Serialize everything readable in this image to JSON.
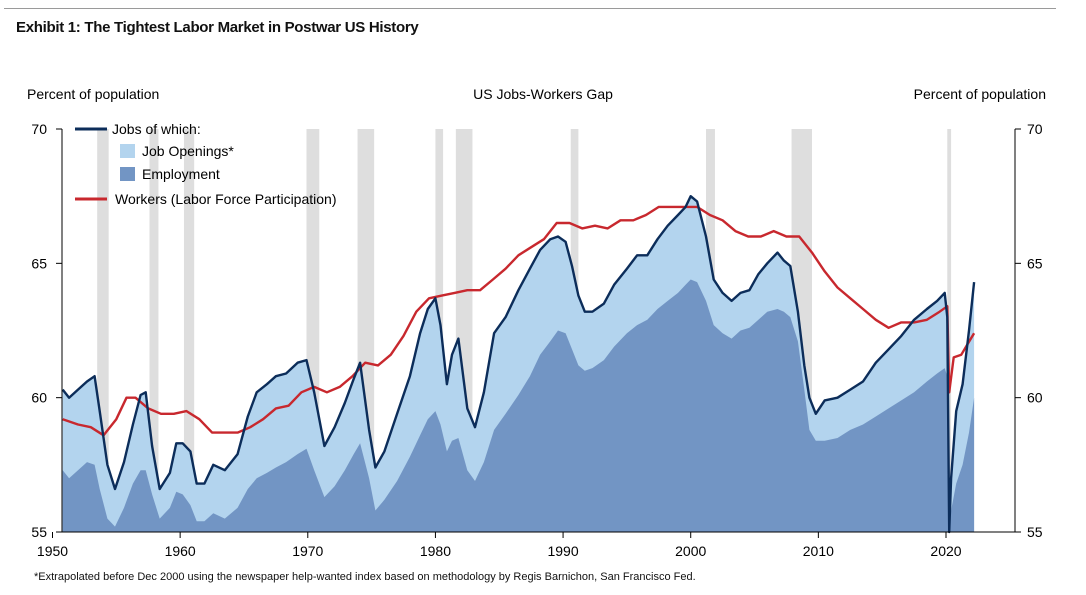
{
  "exhibit_title": "Exhibit 1: The Tightest Labor Market in Postwar US History",
  "footnote": "*Extrapolated before Dec 2000 using the newspaper help-wanted index based on methodology by Regis Barnichon, San Francisco Fed.",
  "colors": {
    "jobs_line": "#0c2d5a",
    "job_openings": "#b3d4ee",
    "employment": "#7295c4",
    "workers_line": "#c8282e",
    "recession": "#dedede",
    "axis": "#000000"
  },
  "chart_data": {
    "type": "area",
    "title": "US Jobs-Workers Gap",
    "ylabel_left": "Percent of population",
    "ylabel_right": "Percent of population",
    "xlabel": "",
    "xlim": [
      1950,
      2023
    ],
    "ylim": [
      55,
      70
    ],
    "x_ticks": [
      1950,
      1960,
      1970,
      1980,
      1990,
      2000,
      2010,
      2020
    ],
    "y_ticks": [
      55,
      60,
      65,
      70
    ],
    "grid": false,
    "legend": {
      "position": "top-left",
      "entries": [
        {
          "label": "Jobs of which:",
          "kind": "line",
          "series": "jobs"
        },
        {
          "label": "Job Openings*",
          "kind": "box",
          "series": "job_openings"
        },
        {
          "label": "Employment",
          "kind": "box",
          "series": "employment"
        },
        {
          "label": "Workers (Labor Force Participation)",
          "kind": "line",
          "series": "workers"
        }
      ]
    },
    "recessions": [
      [
        1953.5,
        1954.4
      ],
      [
        1957.6,
        1958.3
      ],
      [
        1960.3,
        1961.1
      ],
      [
        1969.9,
        1970.9
      ],
      [
        1973.9,
        1975.2
      ],
      [
        1980.0,
        1980.6
      ],
      [
        1981.6,
        1982.9
      ],
      [
        1990.6,
        1991.2
      ],
      [
        2001.2,
        2001.9
      ],
      [
        2007.9,
        2009.5
      ],
      [
        2020.1,
        2020.4
      ]
    ],
    "series": [
      {
        "name": "Jobs",
        "key": "jobs",
        "x": [
          1950.8,
          1951.3,
          1952.0,
          1952.7,
          1953.3,
          1953.7,
          1954.3,
          1954.9,
          1955.6,
          1956.3,
          1956.9,
          1957.3,
          1957.8,
          1958.4,
          1959.2,
          1959.7,
          1960.2,
          1960.8,
          1961.3,
          1961.9,
          1962.6,
          1963.5,
          1964.5,
          1965.3,
          1966.0,
          1966.8,
          1967.5,
          1968.3,
          1969.2,
          1969.9,
          1970.5,
          1971.3,
          1972.1,
          1972.9,
          1973.6,
          1974.1,
          1974.8,
          1975.3,
          1976.0,
          1977.0,
          1978.0,
          1978.8,
          1979.4,
          1980.0,
          1980.4,
          1980.9,
          1981.3,
          1981.8,
          1982.5,
          1983.1,
          1983.8,
          1984.6,
          1985.5,
          1986.5,
          1987.4,
          1988.2,
          1989.0,
          1989.6,
          1990.2,
          1990.7,
          1991.2,
          1991.7,
          1992.3,
          1993.2,
          1994.0,
          1995.0,
          1995.8,
          1996.6,
          1997.4,
          1998.2,
          1999.0,
          1999.6,
          2000.0,
          2000.5,
          2001.2,
          2001.8,
          2002.5,
          2003.2,
          2003.9,
          2004.6,
          2005.3,
          2006.0,
          2006.8,
          2007.3,
          2007.8,
          2008.4,
          2008.9,
          2009.3,
          2009.8,
          2010.5,
          2011.5,
          2012.5,
          2013.5,
          2014.5,
          2015.5,
          2016.5,
          2017.5,
          2018.5,
          2019.3,
          2019.9,
          2020.1,
          2020.25,
          2020.4,
          2020.8,
          2021.3,
          2021.8,
          2022.2
        ],
        "values": [
          60.3,
          60.0,
          60.3,
          60.6,
          60.8,
          59.5,
          57.5,
          56.6,
          57.6,
          59.0,
          60.1,
          60.2,
          58.2,
          56.6,
          57.2,
          58.3,
          58.3,
          58.0,
          56.8,
          56.8,
          57.5,
          57.3,
          57.9,
          59.3,
          60.2,
          60.5,
          60.8,
          60.9,
          61.3,
          61.4,
          60.2,
          58.2,
          58.9,
          59.8,
          60.7,
          61.3,
          58.8,
          57.4,
          58.0,
          59.4,
          60.8,
          62.4,
          63.3,
          63.7,
          62.7,
          60.5,
          61.6,
          62.2,
          59.6,
          58.9,
          60.2,
          62.4,
          63.0,
          64.0,
          64.8,
          65.5,
          65.9,
          66.0,
          65.8,
          64.9,
          63.8,
          63.2,
          63.2,
          63.5,
          64.2,
          64.8,
          65.3,
          65.3,
          65.9,
          66.4,
          66.8,
          67.1,
          67.5,
          67.3,
          66.0,
          64.4,
          63.9,
          63.6,
          63.9,
          64.0,
          64.6,
          65.0,
          65.4,
          65.1,
          64.9,
          63.2,
          61.2,
          60.0,
          59.4,
          59.9,
          60.0,
          60.3,
          60.6,
          61.3,
          61.8,
          62.3,
          62.9,
          63.3,
          63.6,
          63.9,
          63.0,
          55.0,
          57.0,
          59.5,
          60.5,
          62.5,
          64.3
        ]
      },
      {
        "name": "Employment",
        "key": "employment",
        "x": [
          1950.8,
          1951.3,
          1952.0,
          1952.7,
          1953.3,
          1953.7,
          1954.3,
          1954.9,
          1955.6,
          1956.3,
          1956.9,
          1957.3,
          1957.8,
          1958.4,
          1959.2,
          1959.7,
          1960.2,
          1960.8,
          1961.3,
          1961.9,
          1962.6,
          1963.5,
          1964.5,
          1965.3,
          1966.0,
          1966.8,
          1967.5,
          1968.3,
          1969.2,
          1969.9,
          1970.5,
          1971.3,
          1972.1,
          1972.9,
          1973.6,
          1974.1,
          1974.8,
          1975.3,
          1976.0,
          1977.0,
          1978.0,
          1978.8,
          1979.4,
          1980.0,
          1980.4,
          1980.9,
          1981.3,
          1981.8,
          1982.5,
          1983.1,
          1983.8,
          1984.6,
          1985.5,
          1986.5,
          1987.4,
          1988.2,
          1989.0,
          1989.6,
          1990.2,
          1990.7,
          1991.2,
          1991.7,
          1992.3,
          1993.2,
          1994.0,
          1995.0,
          1995.8,
          1996.6,
          1997.4,
          1998.2,
          1999.0,
          1999.6,
          2000.0,
          2000.5,
          2001.2,
          2001.8,
          2002.5,
          2003.2,
          2003.9,
          2004.6,
          2005.3,
          2006.0,
          2006.8,
          2007.3,
          2007.8,
          2008.4,
          2008.9,
          2009.3,
          2009.8,
          2010.5,
          2011.5,
          2012.5,
          2013.5,
          2014.5,
          2015.5,
          2016.5,
          2017.5,
          2018.5,
          2019.3,
          2019.9,
          2020.1,
          2020.25,
          2020.4,
          2020.8,
          2021.3,
          2021.8,
          2022.2
        ],
        "values": [
          57.3,
          57.0,
          57.3,
          57.6,
          57.5,
          56.6,
          55.5,
          55.2,
          55.9,
          56.8,
          57.3,
          57.3,
          56.4,
          55.5,
          55.9,
          56.5,
          56.4,
          56.0,
          55.4,
          55.4,
          55.7,
          55.5,
          55.9,
          56.6,
          57.0,
          57.2,
          57.4,
          57.6,
          57.9,
          58.1,
          57.3,
          56.3,
          56.7,
          57.3,
          57.9,
          58.3,
          57.0,
          55.8,
          56.2,
          56.9,
          57.8,
          58.6,
          59.2,
          59.5,
          59.0,
          58.0,
          58.4,
          58.5,
          57.3,
          56.9,
          57.6,
          58.8,
          59.4,
          60.1,
          60.8,
          61.6,
          62.1,
          62.5,
          62.4,
          61.8,
          61.2,
          61.0,
          61.1,
          61.4,
          61.9,
          62.4,
          62.7,
          62.9,
          63.3,
          63.6,
          63.9,
          64.2,
          64.4,
          64.3,
          63.6,
          62.7,
          62.4,
          62.2,
          62.5,
          62.6,
          62.9,
          63.2,
          63.3,
          63.2,
          63.0,
          62.1,
          60.3,
          58.8,
          58.4,
          58.4,
          58.5,
          58.8,
          59.0,
          59.3,
          59.6,
          59.9,
          60.2,
          60.6,
          60.9,
          61.1,
          60.8,
          55.0,
          55.8,
          56.8,
          57.5,
          58.7,
          60.0
        ]
      },
      {
        "name": "Workers (Labor Force Participation)",
        "key": "workers",
        "x": [
          1950.8,
          1952.0,
          1953.0,
          1954.0,
          1955.0,
          1955.8,
          1956.5,
          1957.5,
          1958.5,
          1959.5,
          1960.5,
          1961.5,
          1962.5,
          1963.5,
          1964.5,
          1965.5,
          1966.5,
          1967.5,
          1968.5,
          1969.5,
          1970.5,
          1971.5,
          1972.5,
          1973.5,
          1974.5,
          1975.5,
          1976.5,
          1977.5,
          1978.5,
          1979.5,
          1980.5,
          1981.5,
          1982.5,
          1983.5,
          1984.5,
          1985.5,
          1986.5,
          1987.5,
          1988.5,
          1989.5,
          1990.5,
          1991.5,
          1992.5,
          1993.5,
          1994.5,
          1995.5,
          1996.5,
          1997.5,
          1998.5,
          1999.5,
          2000.5,
          2001.5,
          2002.5,
          2003.5,
          2004.5,
          2005.5,
          2006.5,
          2007.5,
          2008.5,
          2009.5,
          2010.5,
          2011.5,
          2012.5,
          2013.5,
          2014.5,
          2015.5,
          2016.5,
          2017.5,
          2018.5,
          2019.5,
          2020.1,
          2020.25,
          2020.6,
          2021.2,
          2021.7,
          2022.2
        ],
        "values": [
          59.2,
          59.0,
          58.9,
          58.6,
          59.2,
          60.0,
          60.0,
          59.6,
          59.4,
          59.4,
          59.5,
          59.2,
          58.7,
          58.7,
          58.7,
          58.9,
          59.2,
          59.6,
          59.7,
          60.2,
          60.4,
          60.2,
          60.4,
          60.8,
          61.3,
          61.2,
          61.6,
          62.3,
          63.2,
          63.7,
          63.8,
          63.9,
          64.0,
          64.0,
          64.4,
          64.8,
          65.3,
          65.6,
          65.9,
          66.5,
          66.5,
          66.3,
          66.4,
          66.3,
          66.6,
          66.6,
          66.8,
          67.1,
          67.1,
          67.1,
          67.1,
          66.8,
          66.6,
          66.2,
          66.0,
          66.0,
          66.2,
          66.0,
          66.0,
          65.4,
          64.7,
          64.1,
          63.7,
          63.3,
          62.9,
          62.6,
          62.8,
          62.8,
          62.9,
          63.2,
          63.4,
          60.2,
          61.5,
          61.6,
          62.0,
          62.4
        ]
      }
    ]
  }
}
